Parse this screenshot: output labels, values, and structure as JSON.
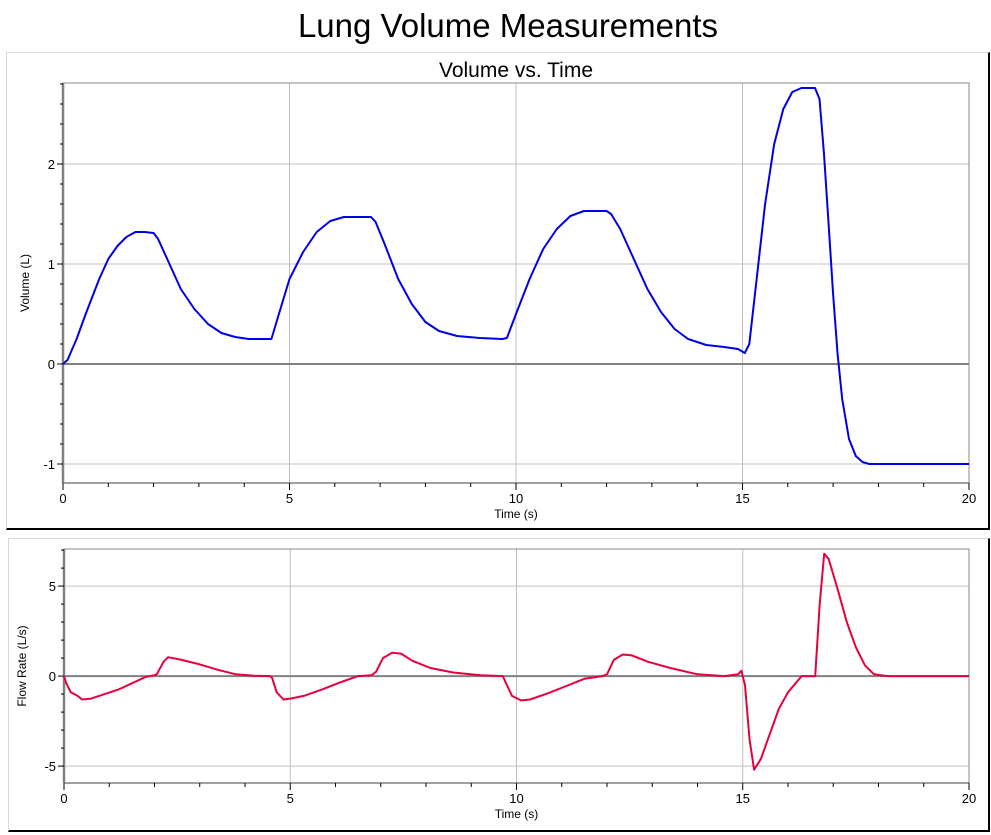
{
  "page": {
    "title": "Lung Volume Measurements"
  },
  "chart_data": [
    {
      "type": "line",
      "title": "Volume vs. Time",
      "xlabel": "Time (s)",
      "ylabel": "Volume (L)",
      "xlim": [
        0,
        20
      ],
      "ylim": [
        -1.19,
        2.81
      ],
      "xticks": [
        0,
        5,
        10,
        15,
        20
      ],
      "yticks": [
        -1,
        0,
        1,
        2
      ],
      "grid": true,
      "series": [
        {
          "name": "Volume",
          "color": "#0000e6",
          "x": [
            0,
            0.1,
            0.3,
            0.5,
            0.8,
            1.0,
            1.2,
            1.4,
            1.6,
            1.8,
            2.0,
            2.1,
            2.3,
            2.6,
            2.9,
            3.2,
            3.5,
            3.8,
            4.1,
            4.4,
            4.6,
            4.8,
            5.0,
            5.3,
            5.6,
            5.9,
            6.2,
            6.5,
            6.8,
            6.9,
            7.1,
            7.4,
            7.7,
            8.0,
            8.3,
            8.7,
            9.2,
            9.7,
            9.8,
            10.0,
            10.3,
            10.6,
            10.9,
            11.2,
            11.5,
            12.0,
            12.1,
            12.3,
            12.6,
            12.9,
            13.2,
            13.5,
            13.8,
            14.2,
            14.6,
            14.9,
            15.05,
            15.15,
            15.3,
            15.5,
            15.7,
            15.9,
            16.1,
            16.3,
            16.6,
            16.7,
            16.8,
            16.9,
            17.0,
            17.1,
            17.2,
            17.35,
            17.5,
            17.65,
            17.8,
            18.0,
            19.0,
            20.0
          ],
          "y": [
            0,
            0.04,
            0.25,
            0.5,
            0.85,
            1.05,
            1.18,
            1.27,
            1.32,
            1.32,
            1.31,
            1.25,
            1.05,
            0.75,
            0.55,
            0.4,
            0.31,
            0.27,
            0.25,
            0.25,
            0.25,
            0.55,
            0.85,
            1.12,
            1.32,
            1.43,
            1.47,
            1.47,
            1.47,
            1.42,
            1.2,
            0.85,
            0.6,
            0.42,
            0.33,
            0.28,
            0.26,
            0.25,
            0.26,
            0.5,
            0.85,
            1.15,
            1.35,
            1.48,
            1.53,
            1.53,
            1.5,
            1.35,
            1.05,
            0.75,
            0.52,
            0.35,
            0.25,
            0.19,
            0.17,
            0.15,
            0.11,
            0.2,
            0.8,
            1.6,
            2.2,
            2.55,
            2.72,
            2.76,
            2.76,
            2.65,
            2.1,
            1.4,
            0.7,
            0.1,
            -0.35,
            -0.75,
            -0.92,
            -0.98,
            -1.0,
            -1.0,
            -1.0,
            -1.0
          ]
        }
      ]
    },
    {
      "type": "line",
      "title": "",
      "xlabel": "Time (s)",
      "ylabel": "Flow Rate (L/s)",
      "xlim": [
        0,
        20
      ],
      "ylim": [
        -5.94,
        7.06
      ],
      "xticks": [
        0,
        5,
        10,
        15,
        20
      ],
      "yticks": [
        -5,
        0,
        5
      ],
      "grid": true,
      "series": [
        {
          "name": "Flow Rate",
          "color": "#e8003c",
          "x": [
            0,
            0.05,
            0.15,
            0.3,
            0.4,
            0.6,
            0.9,
            1.2,
            1.5,
            1.8,
            2.0,
            2.05,
            2.2,
            2.3,
            2.6,
            3.0,
            3.4,
            3.8,
            4.2,
            4.55,
            4.6,
            4.7,
            4.85,
            5.0,
            5.3,
            5.7,
            6.1,
            6.5,
            6.8,
            6.9,
            7.05,
            7.25,
            7.45,
            7.7,
            8.1,
            8.6,
            9.2,
            9.7,
            9.75,
            9.9,
            10.1,
            10.3,
            10.7,
            11.1,
            11.5,
            11.9,
            12.0,
            12.15,
            12.35,
            12.55,
            12.9,
            13.4,
            14.0,
            14.6,
            14.9,
            14.97,
            15.05,
            15.15,
            15.25,
            15.4,
            15.6,
            15.8,
            16.0,
            16.3,
            16.5,
            16.6,
            16.7,
            16.8,
            16.9,
            17.1,
            17.3,
            17.5,
            17.7,
            17.9,
            18.2,
            20.0
          ],
          "y": [
            0,
            -0.4,
            -0.9,
            -1.1,
            -1.3,
            -1.25,
            -1.0,
            -0.75,
            -0.4,
            -0.05,
            0.05,
            0.1,
            0.8,
            1.05,
            0.9,
            0.65,
            0.35,
            0.1,
            0.02,
            0.0,
            -0.1,
            -0.9,
            -1.3,
            -1.25,
            -1.1,
            -0.75,
            -0.35,
            0.0,
            0.05,
            0.25,
            1.0,
            1.3,
            1.25,
            0.85,
            0.45,
            0.2,
            0.05,
            0.0,
            -0.3,
            -1.1,
            -1.35,
            -1.3,
            -0.95,
            -0.55,
            -0.15,
            0.0,
            0.1,
            0.9,
            1.2,
            1.15,
            0.8,
            0.45,
            0.1,
            0.0,
            0.1,
            0.3,
            -0.5,
            -3.5,
            -5.2,
            -4.6,
            -3.2,
            -1.8,
            -0.9,
            0.0,
            0.0,
            0.0,
            4.0,
            6.8,
            6.5,
            4.8,
            3.0,
            1.6,
            0.6,
            0.1,
            0.0,
            0.0
          ]
        }
      ]
    }
  ]
}
